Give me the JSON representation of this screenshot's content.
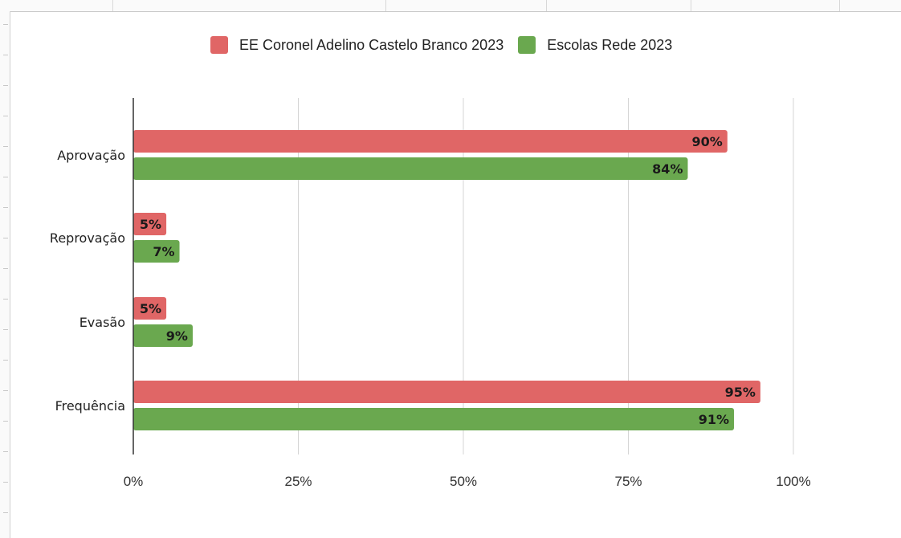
{
  "chart_data": {
    "type": "bar",
    "orientation": "horizontal",
    "categories": [
      "Aprovação",
      "Reprovação",
      "Evasão",
      "Frequência"
    ],
    "series": [
      {
        "name": "EE Coronel Adelino Castelo Branco 2023",
        "color": "#e06666",
        "values": [
          90,
          5,
          5,
          95
        ],
        "labels": [
          "90%",
          "5%",
          "5%",
          "95%"
        ]
      },
      {
        "name": "Escolas Rede 2023",
        "color": "#6aa84f",
        "values": [
          84,
          7,
          9,
          91
        ],
        "labels": [
          "84%",
          "7%",
          "9%",
          "91%"
        ]
      }
    ],
    "xlim": [
      0,
      100
    ],
    "x_ticks": [
      0,
      25,
      50,
      75,
      100
    ],
    "x_tick_labels": [
      "0%",
      "25%",
      "50%",
      "75%",
      "100%"
    ],
    "grid": true,
    "legend_position": "top"
  }
}
